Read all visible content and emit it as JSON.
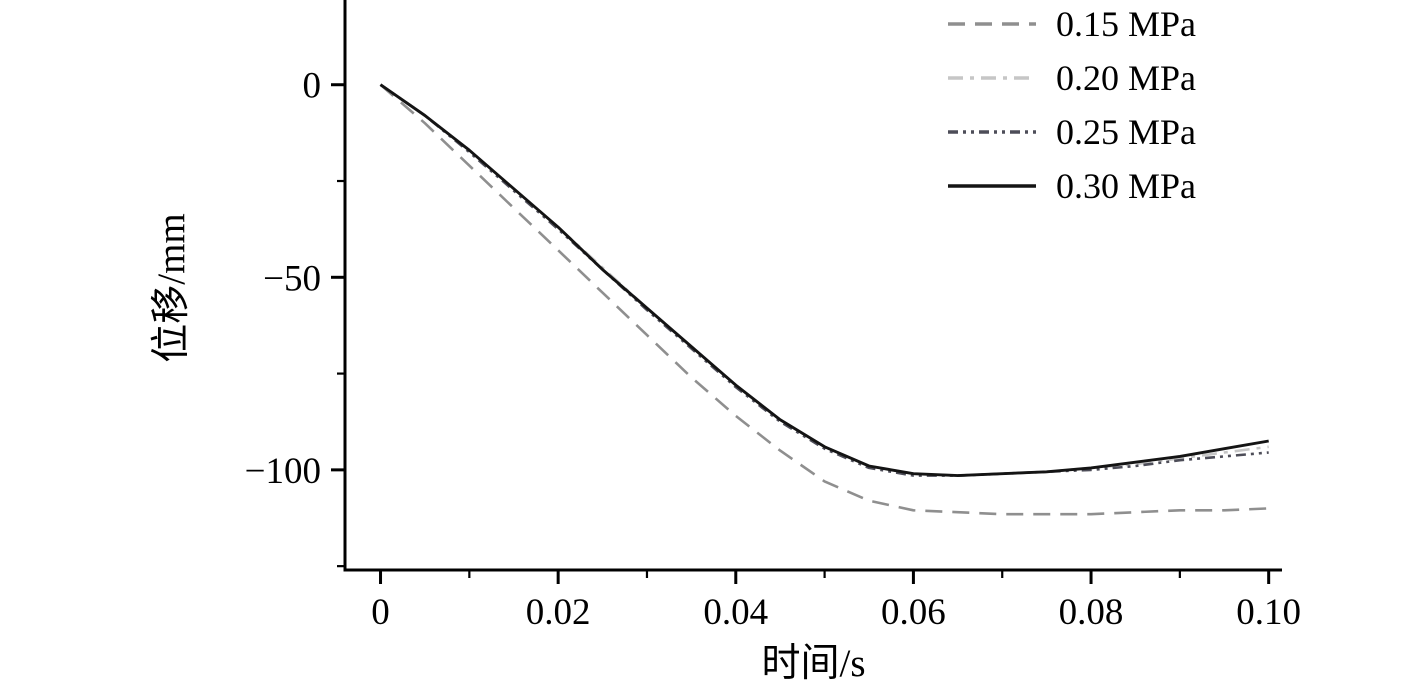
{
  "chart_data": {
    "type": "line",
    "title": "",
    "xlabel": "时间/s",
    "ylabel": "位移/mm",
    "xlim": [
      -0.004,
      0.1015
    ],
    "ylim": [
      -126,
      22
    ],
    "x_ticks": [
      0,
      0.02,
      0.04,
      0.06,
      0.08,
      0.1
    ],
    "x_tick_labels": [
      "0",
      "0.02",
      "0.04",
      "0.06",
      "0.08",
      "0.10"
    ],
    "x_minor_ticks": [
      0.01,
      0.03,
      0.05,
      0.07,
      0.09
    ],
    "y_ticks": [
      0,
      -50,
      -100
    ],
    "y_tick_labels": [
      "0",
      "−50",
      "−100"
    ],
    "y_minor_ticks": [
      -25,
      -75,
      -125
    ],
    "grid": false,
    "legend_position": "top-right",
    "x": [
      0,
      0.005,
      0.01,
      0.015,
      0.02,
      0.025,
      0.03,
      0.035,
      0.04,
      0.045,
      0.05,
      0.055,
      0.06,
      0.065,
      0.07,
      0.075,
      0.08,
      0.085,
      0.09,
      0.095,
      0.1
    ],
    "series": [
      {
        "name": "0.15 MPa",
        "color": "#8f8f8f",
        "dash": "17 10",
        "width": 2.6,
        "values": [
          0,
          -10,
          -21,
          -32,
          -43,
          -54,
          -65,
          -76,
          -86,
          -95,
          -103,
          -108,
          -110.5,
          -111,
          -111.5,
          -111.5,
          -111.5,
          -111,
          -110.5,
          -110.5,
          -110
        ]
      },
      {
        "name": "0.20 MPa",
        "color": "#c6c6c6",
        "dash": "15 7 4 7",
        "width": 2.6,
        "values": [
          0,
          -8,
          -17,
          -27,
          -37,
          -47.5,
          -58,
          -68,
          -78,
          -87,
          -94,
          -99,
          -101,
          -101.5,
          -101,
          -100.5,
          -99.5,
          -98.5,
          -97,
          -95.5,
          -94
        ]
      },
      {
        "name": "0.25 MPa",
        "color": "#4d4d58",
        "dash": "10 5 3 5 3 5",
        "width": 2.6,
        "values": [
          0,
          -8,
          -17.5,
          -27.5,
          -37.5,
          -48,
          -58.5,
          -68.5,
          -78.5,
          -87.5,
          -94.5,
          -99.5,
          -101.5,
          -101.5,
          -101,
          -100.5,
          -100,
          -99,
          -97.5,
          -96.5,
          -95.5
        ]
      },
      {
        "name": "0.30 MPa",
        "color": "#141414",
        "dash": "",
        "width": 2.9,
        "values": [
          0,
          -8,
          -17,
          -27,
          -37,
          -48,
          -58,
          -68,
          -78,
          -87,
          -94,
          -99,
          -101,
          -101.5,
          -101,
          -100.5,
          -99.5,
          -98,
          -96.5,
          -94.5,
          -92.5
        ]
      }
    ]
  }
}
